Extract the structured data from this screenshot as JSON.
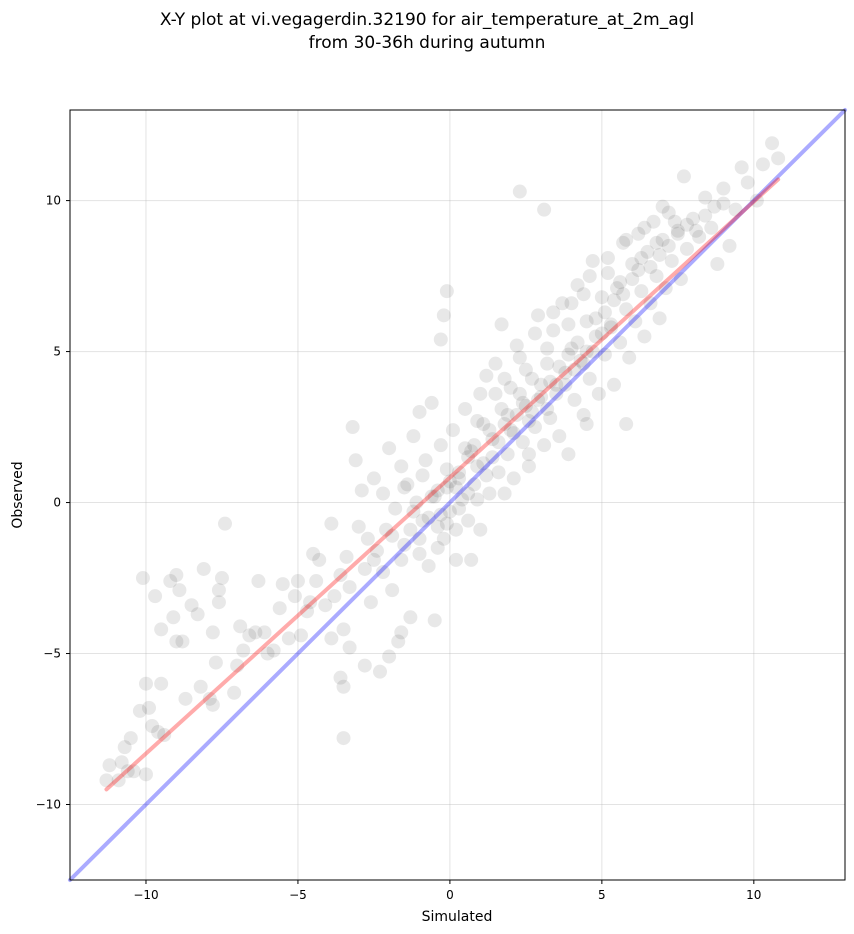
{
  "chart_data": {
    "type": "scatter",
    "title": "X-Y plot at vi.vegagerdin.32190 for air_temperature_at_2m_agl",
    "subtitle": "from 30-36h during autumn",
    "xlabel": "Simulated",
    "ylabel": "Observed",
    "xlim": [
      -12.5,
      13
    ],
    "ylim": [
      -12.5,
      13
    ],
    "xticks": [
      -10,
      -5,
      0,
      5,
      10
    ],
    "yticks": [
      -10,
      -5,
      0,
      5,
      10
    ],
    "xtick_labels": [
      "−10",
      "−5",
      "0",
      "5",
      "10"
    ],
    "ytick_labels": [
      "−10",
      "−5",
      "0",
      "5",
      "10"
    ],
    "grid": true,
    "point_color": "#000000",
    "point_opacity": 0.09,
    "identity_line": {
      "color": "#0000ff",
      "opacity": 0.33,
      "from": [
        -12.5,
        -12.5
      ],
      "to": [
        13,
        13
      ]
    },
    "fit_line": {
      "color": "#ff0000",
      "opacity": 0.33,
      "from": [
        -11.3,
        -9.5
      ],
      "to": [
        10.8,
        10.7
      ]
    },
    "points": [
      [
        -11.3,
        -9.2
      ],
      [
        -11.2,
        -8.7
      ],
      [
        -10.9,
        -9.2
      ],
      [
        -10.8,
        -8.6
      ],
      [
        -10.6,
        -8.9
      ],
      [
        -10.7,
        -8.1
      ],
      [
        -10.5,
        -7.8
      ],
      [
        -10.4,
        -8.9
      ],
      [
        -10.2,
        -6.9
      ],
      [
        -10.0,
        -9.0
      ],
      [
        -10.1,
        -2.5
      ],
      [
        -9.8,
        -7.4
      ],
      [
        -9.9,
        -6.8
      ],
      [
        -9.6,
        -7.6
      ],
      [
        -9.5,
        -6.0
      ],
      [
        -9.4,
        -7.7
      ],
      [
        -10.0,
        -6.0
      ],
      [
        -9.7,
        -3.1
      ],
      [
        -9.5,
        -4.2
      ],
      [
        -9.2,
        -2.6
      ],
      [
        -9.0,
        -2.4
      ],
      [
        -8.9,
        -2.9
      ],
      [
        -9.1,
        -3.8
      ],
      [
        -8.8,
        -4.6
      ],
      [
        -9.0,
        -4.6
      ],
      [
        -8.7,
        -6.5
      ],
      [
        -8.5,
        -3.4
      ],
      [
        -8.3,
        -3.7
      ],
      [
        -8.2,
        -6.1
      ],
      [
        -8.1,
        -2.2
      ],
      [
        -7.9,
        -6.5
      ],
      [
        -7.8,
        -4.3
      ],
      [
        -7.8,
        -6.7
      ],
      [
        -7.6,
        -2.9
      ],
      [
        -7.5,
        -2.5
      ],
      [
        -7.6,
        -3.3
      ],
      [
        -7.4,
        -0.7
      ],
      [
        -7.7,
        -5.3
      ],
      [
        -7.1,
        -6.3
      ],
      [
        -7.0,
        -5.4
      ],
      [
        -6.9,
        -4.1
      ],
      [
        -6.8,
        -4.9
      ],
      [
        -6.6,
        -4.4
      ],
      [
        -6.4,
        -4.3
      ],
      [
        -6.3,
        -2.6
      ],
      [
        -6.1,
        -4.3
      ],
      [
        -6.0,
        -5.0
      ],
      [
        -5.8,
        -4.9
      ],
      [
        -5.6,
        -3.5
      ],
      [
        -5.5,
        -2.7
      ],
      [
        -5.3,
        -4.5
      ],
      [
        -5.1,
        -3.1
      ],
      [
        -5.0,
        -2.6
      ],
      [
        -4.9,
        -4.4
      ],
      [
        -4.7,
        -3.6
      ],
      [
        -4.6,
        -3.3
      ],
      [
        -4.5,
        -1.7
      ],
      [
        -4.4,
        -2.6
      ],
      [
        -4.3,
        -1.9
      ],
      [
        -4.1,
        -3.4
      ],
      [
        -3.9,
        -4.5
      ],
      [
        -3.9,
        -0.7
      ],
      [
        -3.8,
        -3.1
      ],
      [
        -3.6,
        -2.4
      ],
      [
        -3.5,
        -6.1
      ],
      [
        -3.5,
        -4.2
      ],
      [
        -3.4,
        -1.8
      ],
      [
        -3.3,
        -2.8
      ],
      [
        -3.2,
        2.5
      ],
      [
        -3.1,
        1.4
      ],
      [
        -3.0,
        -0.8
      ],
      [
        -2.9,
        0.4
      ],
      [
        -2.8,
        -2.2
      ],
      [
        -2.7,
        -1.2
      ],
      [
        -2.6,
        -3.3
      ],
      [
        -2.5,
        0.8
      ],
      [
        -2.4,
        -1.6
      ],
      [
        -2.3,
        -5.6
      ],
      [
        -2.2,
        0.3
      ],
      [
        -2.1,
        -0.9
      ],
      [
        -2.0,
        1.8
      ],
      [
        -1.9,
        -2.9
      ],
      [
        -1.8,
        -0.2
      ],
      [
        -1.7,
        -4.6
      ],
      [
        -1.6,
        1.2
      ],
      [
        -1.5,
        -1.4
      ],
      [
        -1.4,
        0.6
      ],
      [
        -1.3,
        -3.8
      ],
      [
        -1.2,
        2.2
      ],
      [
        -1.1,
        0.0
      ],
      [
        -1.0,
        -1.7
      ],
      [
        -0.9,
        -0.6
      ],
      [
        -0.8,
        1.4
      ],
      [
        -0.7,
        -2.1
      ],
      [
        -0.6,
        3.3
      ],
      [
        -0.5,
        0.2
      ],
      [
        -0.4,
        -0.8
      ],
      [
        -0.3,
        1.9
      ],
      [
        -0.2,
        -1.2
      ],
      [
        -0.1,
        0.5
      ],
      [
        0.0,
        -0.3
      ],
      [
        0.1,
        2.4
      ],
      [
        0.2,
        -1.9
      ],
      [
        0.3,
        1.0
      ],
      [
        0.4,
        0.1
      ],
      [
        0.5,
        3.1
      ],
      [
        0.6,
        -0.6
      ],
      [
        0.7,
        1.7
      ],
      [
        0.8,
        0.6
      ],
      [
        0.9,
        2.7
      ],
      [
        1.0,
        -0.9
      ],
      [
        1.1,
        1.3
      ],
      [
        1.2,
        4.2
      ],
      [
        1.3,
        0.3
      ],
      [
        1.4,
        2.1
      ],
      [
        1.5,
        3.6
      ],
      [
        1.6,
        1.0
      ],
      [
        1.7,
        5.9
      ],
      [
        1.8,
        2.6
      ],
      [
        1.9,
        1.6
      ],
      [
        2.0,
        3.8
      ],
      [
        2.1,
        0.8
      ],
      [
        2.2,
        2.9
      ],
      [
        2.3,
        4.8
      ],
      [
        2.4,
        2.0
      ],
      [
        2.5,
        3.2
      ],
      [
        2.6,
        1.2
      ],
      [
        2.7,
        4.1
      ],
      [
        2.8,
        2.5
      ],
      [
        2.9,
        6.2
      ],
      [
        3.0,
        3.5
      ],
      [
        3.1,
        1.9
      ],
      [
        3.2,
        4.6
      ],
      [
        3.3,
        2.8
      ],
      [
        3.4,
        5.7
      ],
      [
        3.5,
        3.9
      ],
      [
        3.6,
        2.2
      ],
      [
        3.7,
        6.6
      ],
      [
        3.8,
        4.3
      ],
      [
        3.9,
        1.6
      ],
      [
        4.0,
        5.1
      ],
      [
        4.1,
        3.4
      ],
      [
        4.2,
        7.2
      ],
      [
        4.3,
        4.7
      ],
      [
        4.4,
        2.9
      ],
      [
        4.5,
        6.0
      ],
      [
        4.6,
        4.1
      ],
      [
        4.7,
        8.0
      ],
      [
        4.8,
        5.5
      ],
      [
        4.9,
        3.6
      ],
      [
        5.0,
        6.8
      ],
      [
        5.1,
        4.9
      ],
      [
        5.2,
        7.6
      ],
      [
        5.3,
        5.8
      ],
      [
        5.4,
        3.9
      ],
      [
        5.5,
        7.1
      ],
      [
        5.6,
        5.3
      ],
      [
        5.7,
        8.6
      ],
      [
        5.8,
        6.4
      ],
      [
        5.9,
        4.8
      ],
      [
        6.0,
        7.9
      ],
      [
        6.1,
        6.0
      ],
      [
        6.2,
        8.9
      ],
      [
        6.3,
        7.0
      ],
      [
        6.4,
        5.5
      ],
      [
        6.5,
        8.3
      ],
      [
        6.6,
        6.6
      ],
      [
        6.7,
        9.3
      ],
      [
        6.8,
        7.5
      ],
      [
        6.9,
        6.1
      ],
      [
        7.0,
        8.7
      ],
      [
        7.1,
        7.1
      ],
      [
        7.2,
        9.6
      ],
      [
        7.3,
        8.0
      ],
      [
        7.5,
        9.0
      ],
      [
        7.6,
        7.4
      ],
      [
        7.7,
        10.8
      ],
      [
        7.8,
        8.4
      ],
      [
        8.0,
        9.4
      ],
      [
        8.2,
        8.8
      ],
      [
        8.4,
        10.1
      ],
      [
        8.6,
        9.1
      ],
      [
        8.8,
        7.9
      ],
      [
        9.0,
        10.4
      ],
      [
        9.2,
        8.5
      ],
      [
        9.4,
        9.7
      ],
      [
        9.6,
        11.1
      ],
      [
        9.8,
        10.6
      ],
      [
        10.1,
        10.0
      ],
      [
        10.3,
        11.2
      ],
      [
        10.6,
        11.9
      ],
      [
        10.8,
        11.4
      ],
      [
        2.3,
        10.3
      ],
      [
        3.1,
        9.7
      ],
      [
        -0.1,
        7.0
      ],
      [
        -0.3,
        5.4
      ],
      [
        -0.2,
        6.2
      ],
      [
        -1.0,
        3.0
      ],
      [
        4.5,
        2.6
      ],
      [
        5.8,
        2.6
      ],
      [
        -3.5,
        -7.8
      ],
      [
        -3.6,
        -5.8
      ],
      [
        -3.3,
        -4.8
      ],
      [
        -2.8,
        -5.4
      ],
      [
        -2.0,
        -5.1
      ],
      [
        -1.6,
        -4.3
      ],
      [
        -0.5,
        -3.9
      ],
      [
        0.7,
        -1.9
      ],
      [
        1.8,
        0.3
      ],
      [
        2.6,
        1.6
      ],
      [
        0.3,
        0.8
      ],
      [
        0.6,
        1.5
      ],
      [
        0.9,
        1.2
      ],
      [
        1.3,
        2.4
      ],
      [
        1.6,
        2.0
      ],
      [
        1.9,
        2.9
      ],
      [
        2.1,
        2.3
      ],
      [
        2.4,
        3.3
      ],
      [
        2.7,
        3.0
      ],
      [
        3.0,
        3.9
      ],
      [
        -0.4,
        0.4
      ],
      [
        -0.1,
        1.1
      ],
      [
        0.2,
        0.5
      ],
      [
        0.5,
        1.8
      ],
      [
        0.8,
        1.9
      ],
      [
        1.1,
        2.6
      ],
      [
        1.4,
        1.5
      ],
      [
        1.7,
        3.1
      ],
      [
        2.0,
        2.4
      ],
      [
        2.3,
        3.6
      ],
      [
        3.3,
        4.0
      ],
      [
        3.6,
        4.5
      ],
      [
        3.9,
        4.9
      ],
      [
        4.2,
        5.3
      ],
      [
        4.5,
        5.0
      ],
      [
        4.8,
        6.1
      ],
      [
        5.1,
        6.3
      ],
      [
        5.4,
        6.7
      ],
      [
        5.7,
        6.9
      ],
      [
        6.0,
        7.4
      ],
      [
        2.6,
        2.7
      ],
      [
        2.9,
        3.4
      ],
      [
        3.2,
        3.1
      ],
      [
        3.5,
        3.6
      ],
      [
        3.8,
        3.9
      ],
      [
        4.1,
        4.4
      ],
      [
        4.4,
        4.6
      ],
      [
        4.7,
        5.0
      ],
      [
        5.0,
        5.6
      ],
      [
        5.3,
        5.9
      ],
      [
        -1.5,
        0.5
      ],
      [
        -1.2,
        -0.3
      ],
      [
        -0.9,
        0.9
      ],
      [
        -0.6,
        0.2
      ],
      [
        -0.3,
        -0.4
      ],
      [
        0.0,
        0.7
      ],
      [
        0.3,
        -0.2
      ],
      [
        0.6,
        0.3
      ],
      [
        0.9,
        0.1
      ],
      [
        1.2,
        0.9
      ],
      [
        6.3,
        8.1
      ],
      [
        6.6,
        7.8
      ],
      [
        6.9,
        8.2
      ],
      [
        7.2,
        8.5
      ],
      [
        7.5,
        8.9
      ],
      [
        7.8,
        9.2
      ],
      [
        8.1,
        9.0
      ],
      [
        8.4,
        9.5
      ],
      [
        8.7,
        9.8
      ],
      [
        9.0,
        9.9
      ],
      [
        -2.5,
        -1.9
      ],
      [
        -2.2,
        -2.3
      ],
      [
        -1.9,
        -1.1
      ],
      [
        -1.6,
        -1.9
      ],
      [
        -1.3,
        -0.9
      ],
      [
        -1.0,
        -1.2
      ],
      [
        -0.7,
        -0.5
      ],
      [
        -0.4,
        -1.5
      ],
      [
        -0.1,
        -0.7
      ],
      [
        0.2,
        -0.9
      ],
      [
        1.5,
        4.6
      ],
      [
        2.2,
        5.2
      ],
      [
        2.8,
        5.6
      ],
      [
        3.4,
        6.3
      ],
      [
        4.0,
        6.6
      ],
      [
        4.6,
        7.5
      ],
      [
        5.2,
        8.1
      ],
      [
        5.8,
        8.7
      ],
      [
        6.4,
        9.1
      ],
      [
        7.0,
        9.8
      ],
      [
        1.0,
        3.6
      ],
      [
        1.8,
        4.1
      ],
      [
        2.5,
        4.4
      ],
      [
        3.2,
        5.1
      ],
      [
        3.9,
        5.9
      ],
      [
        4.4,
        6.9
      ],
      [
        5.6,
        7.3
      ],
      [
        6.2,
        7.7
      ],
      [
        6.8,
        8.6
      ],
      [
        7.4,
        9.3
      ]
    ]
  }
}
